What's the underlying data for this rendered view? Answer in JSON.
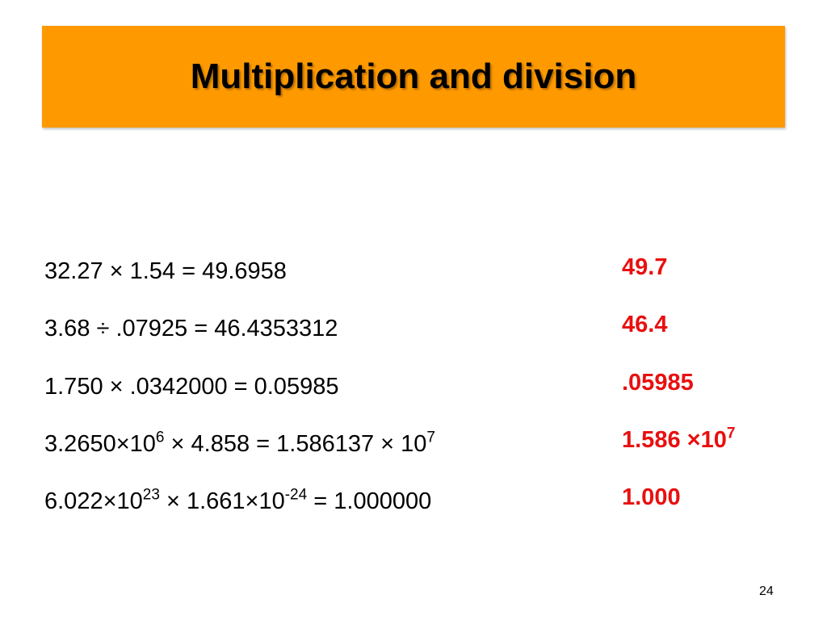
{
  "header": {
    "title": "Multiplication and division"
  },
  "rows": [
    {
      "expression": [
        {
          "text": "32.27 × 1.54 = 49.6958"
        }
      ],
      "answer": [
        {
          "text": "49.7"
        }
      ]
    },
    {
      "expression": [
        {
          "text": "3.68 ÷ .07925 = 46.4353312"
        }
      ],
      "answer": [
        {
          "text": "46.4"
        }
      ]
    },
    {
      "expression": [
        {
          "text": "1.750 × .0342000 = 0.05985"
        }
      ],
      "answer": [
        {
          "text": ".05985"
        }
      ]
    },
    {
      "expression": [
        {
          "text": "3.2650×10"
        },
        {
          "sup": "6"
        },
        {
          "text": " × 4.858 = 1.586137 × 10"
        },
        {
          "sup": "7"
        }
      ],
      "answer": [
        {
          "text": "1.586 ×10"
        },
        {
          "sup": "7"
        }
      ]
    },
    {
      "expression": [
        {
          "text": "6.022×10"
        },
        {
          "sup": "23"
        },
        {
          "text": " × 1.661×10"
        },
        {
          "sup": "-24"
        },
        {
          "text": " = 1.000000"
        }
      ],
      "answer": [
        {
          "text": "1.000"
        }
      ]
    }
  ],
  "footer": {
    "page_number": "24"
  }
}
